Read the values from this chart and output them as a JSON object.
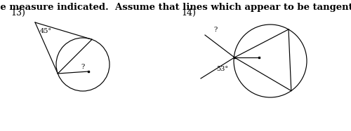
{
  "title": "Find the angle measure indicated.  Assume that lines which appear to be tangent are tangent.",
  "title_fontsize": 9.5,
  "title_fontweight": "bold",
  "bg_color": "#ffffff",
  "label13": "13)",
  "label14": "14)",
  "angle13": "45°",
  "angle14": "53°",
  "q_label": "?",
  "fig_width": 5.0,
  "fig_height": 1.87,
  "dpi": 100
}
